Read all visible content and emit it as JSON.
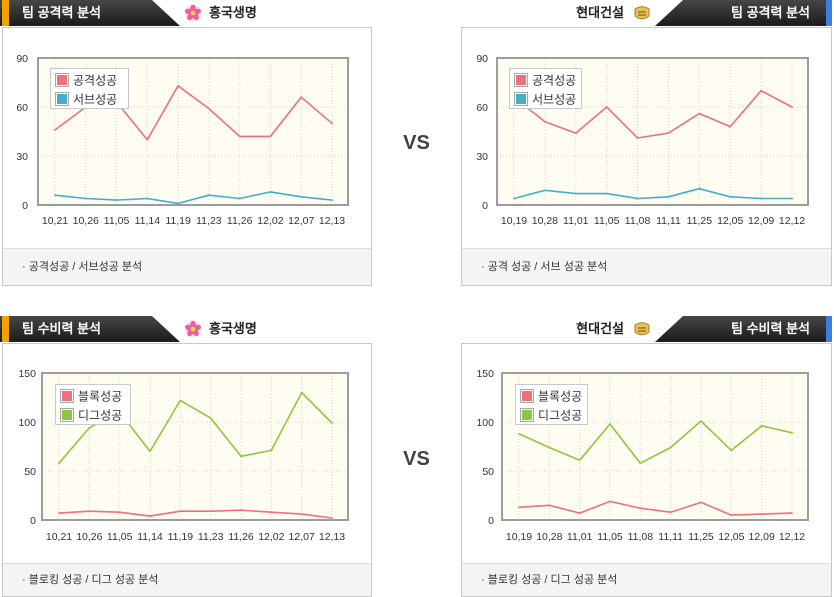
{
  "theme": {
    "accent_home": "#f5a000",
    "accent_away": "#3b7fe0"
  },
  "vs_label": "VS",
  "panels": [
    {
      "section": "팀 공격력 분석",
      "team": "흥국생명",
      "team_icon": "flower-logo-icon",
      "footer": "· 공격성공 / 서브성공 분석"
    },
    {
      "section": "팀 공격력 분석",
      "team": "현대건설",
      "team_icon": "gold-emblem-logo-icon",
      "footer": "· 공격 성공 / 서브 성공 분석"
    },
    {
      "section": "팀 수비력 분석",
      "team": "흥국생명",
      "team_icon": "flower-logo-icon",
      "footer": "· 블로킹 성공 / 디그 성공 분석"
    },
    {
      "section": "팀 수비력 분석",
      "team": "현대건설",
      "team_icon": "gold-emblem-logo-icon",
      "footer": "· 블로킹 성공 / 디그 성공 분석"
    }
  ],
  "chart_data": [
    {
      "type": "line",
      "categories": [
        "10,21",
        "10,26",
        "11,05",
        "11,14",
        "11,19",
        "11,23",
        "11,26",
        "12,02",
        "12,07",
        "12,13"
      ],
      "series": [
        {
          "name": "공격성공",
          "color": "#ef6f7b",
          "values": [
            46,
            60,
            63,
            40,
            73,
            59,
            42,
            42,
            66,
            50
          ]
        },
        {
          "name": "서브성공",
          "color": "#44aec8",
          "values": [
            6,
            4,
            3,
            4,
            1,
            6,
            4,
            8,
            5,
            3
          ]
        }
      ],
      "ylim": [
        0,
        90
      ],
      "yticks": [
        0,
        30,
        60,
        90
      ],
      "grid": true,
      "legend": "top-left"
    },
    {
      "type": "line",
      "categories": [
        "10,19",
        "10,28",
        "11,01",
        "11,05",
        "11,08",
        "11,11",
        "11,25",
        "12,05",
        "12,09",
        "12,12"
      ],
      "series": [
        {
          "name": "공격성공",
          "color": "#ef6f7b",
          "values": [
            66,
            51,
            44,
            60,
            41,
            44,
            56,
            48,
            70,
            60
          ]
        },
        {
          "name": "서브성공",
          "color": "#44aec8",
          "values": [
            4,
            9,
            7,
            7,
            4,
            5,
            10,
            5,
            4,
            4
          ]
        }
      ],
      "ylim": [
        0,
        90
      ],
      "yticks": [
        0,
        30,
        60,
        90
      ],
      "grid": true,
      "legend": "top-left"
    },
    {
      "type": "line",
      "categories": [
        "10,21",
        "10,26",
        "11,05",
        "11,14",
        "11,19",
        "11,23",
        "11,26",
        "12,02",
        "12,07",
        "12,13"
      ],
      "series": [
        {
          "name": "블록성공",
          "color": "#ef6f7b",
          "values": [
            7,
            9,
            8,
            4,
            9,
            9,
            10,
            8,
            6,
            2
          ]
        },
        {
          "name": "디그성공",
          "color": "#8dc63f",
          "values": [
            58,
            94,
            110,
            70,
            122,
            104,
            65,
            71,
            130,
            99
          ]
        }
      ],
      "ylim": [
        0,
        150
      ],
      "yticks": [
        0,
        50,
        100,
        150
      ],
      "grid": true,
      "legend": "top-left"
    },
    {
      "type": "line",
      "categories": [
        "10,19",
        "10,28",
        "11,01",
        "11,05",
        "11,08",
        "11,11",
        "11,25",
        "12,05",
        "12,09",
        "12,12"
      ],
      "series": [
        {
          "name": "블록성공",
          "color": "#ef6f7b",
          "values": [
            13,
            15,
            7,
            19,
            12,
            8,
            18,
            5,
            6,
            7
          ]
        },
        {
          "name": "디그성공",
          "color": "#8dc63f",
          "values": [
            88,
            74,
            61,
            98,
            58,
            74,
            101,
            71,
            96,
            89
          ]
        }
      ],
      "ylim": [
        0,
        150
      ],
      "yticks": [
        0,
        50,
        100,
        150
      ],
      "grid": true,
      "legend": "top-left"
    }
  ]
}
